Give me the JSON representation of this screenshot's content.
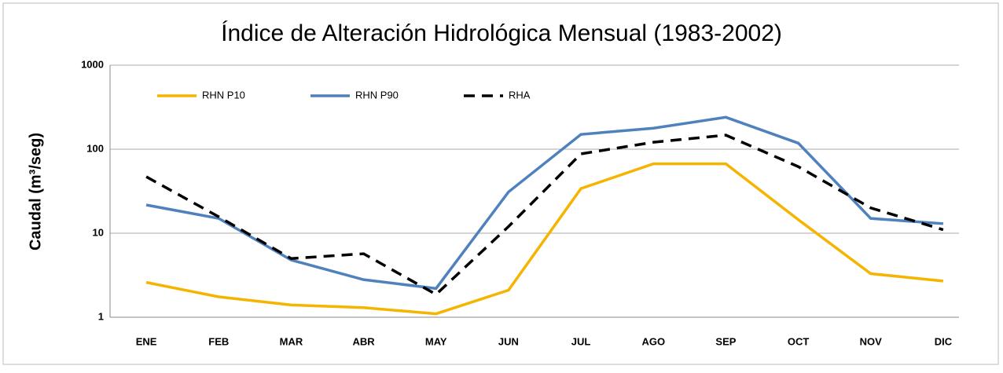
{
  "chart_data": {
    "type": "line",
    "title": "Índice de Alteración Hidrológica Mensual (1983-2002)",
    "y_label": "Caudal (m³/seg)",
    "categories": [
      "ENE",
      "FEB",
      "MAR",
      "ABR",
      "MAY",
      "JUN",
      "JUL",
      "AGO",
      "SEP",
      "OCT",
      "NOV",
      "DIC"
    ],
    "series": [
      {
        "name": "RHN P10",
        "color": "#f5b400",
        "dashed": false,
        "values": [
          2.6,
          1.75,
          1.4,
          1.3,
          1.1,
          2.1,
          34,
          67,
          67,
          14.5,
          3.3,
          2.7
        ]
      },
      {
        "name": "RHN P90",
        "color": "#4f81bd",
        "dashed": false,
        "values": [
          21.7,
          15,
          4.8,
          2.8,
          2.2,
          31,
          150,
          178,
          240,
          118,
          15,
          13
        ]
      },
      {
        "name": "RHA",
        "color": "#000000",
        "dashed": true,
        "values": [
          47,
          15.7,
          5,
          5.7,
          1.87,
          12,
          88,
          121,
          147,
          62,
          20,
          11
        ]
      }
    ],
    "ylim": [
      1,
      1000
    ],
    "yticks": [
      1,
      10,
      100,
      1000
    ],
    "log_y": true,
    "grid": true,
    "legend": "top-left"
  }
}
